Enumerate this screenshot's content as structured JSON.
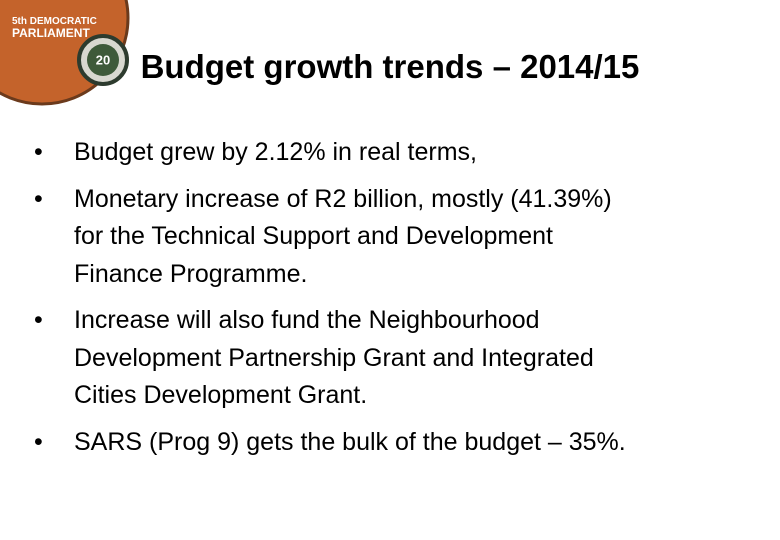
{
  "logo": {
    "line1": "5th DEMOCRATIC",
    "line2": "PARLIAMENT",
    "emblem": "20"
  },
  "title": "Budget growth trends – 2014/15",
  "bullets": [
    {
      "lines": [
        "Budget grew by 2.12% in real terms,"
      ]
    },
    {
      "lines": [
        "Monetary increase of R2 billion, mostly (41.39%)",
        "for the Technical Support and Development",
        "Finance Programme."
      ]
    },
    {
      "lines": [
        "Increase will also fund the Neighbourhood",
        "Development Partnership Grant and Integrated",
        "Cities Development Grant."
      ]
    },
    {
      "lines": [
        "SARS (Prog 9) gets the bulk of the budget – 35%."
      ]
    }
  ]
}
